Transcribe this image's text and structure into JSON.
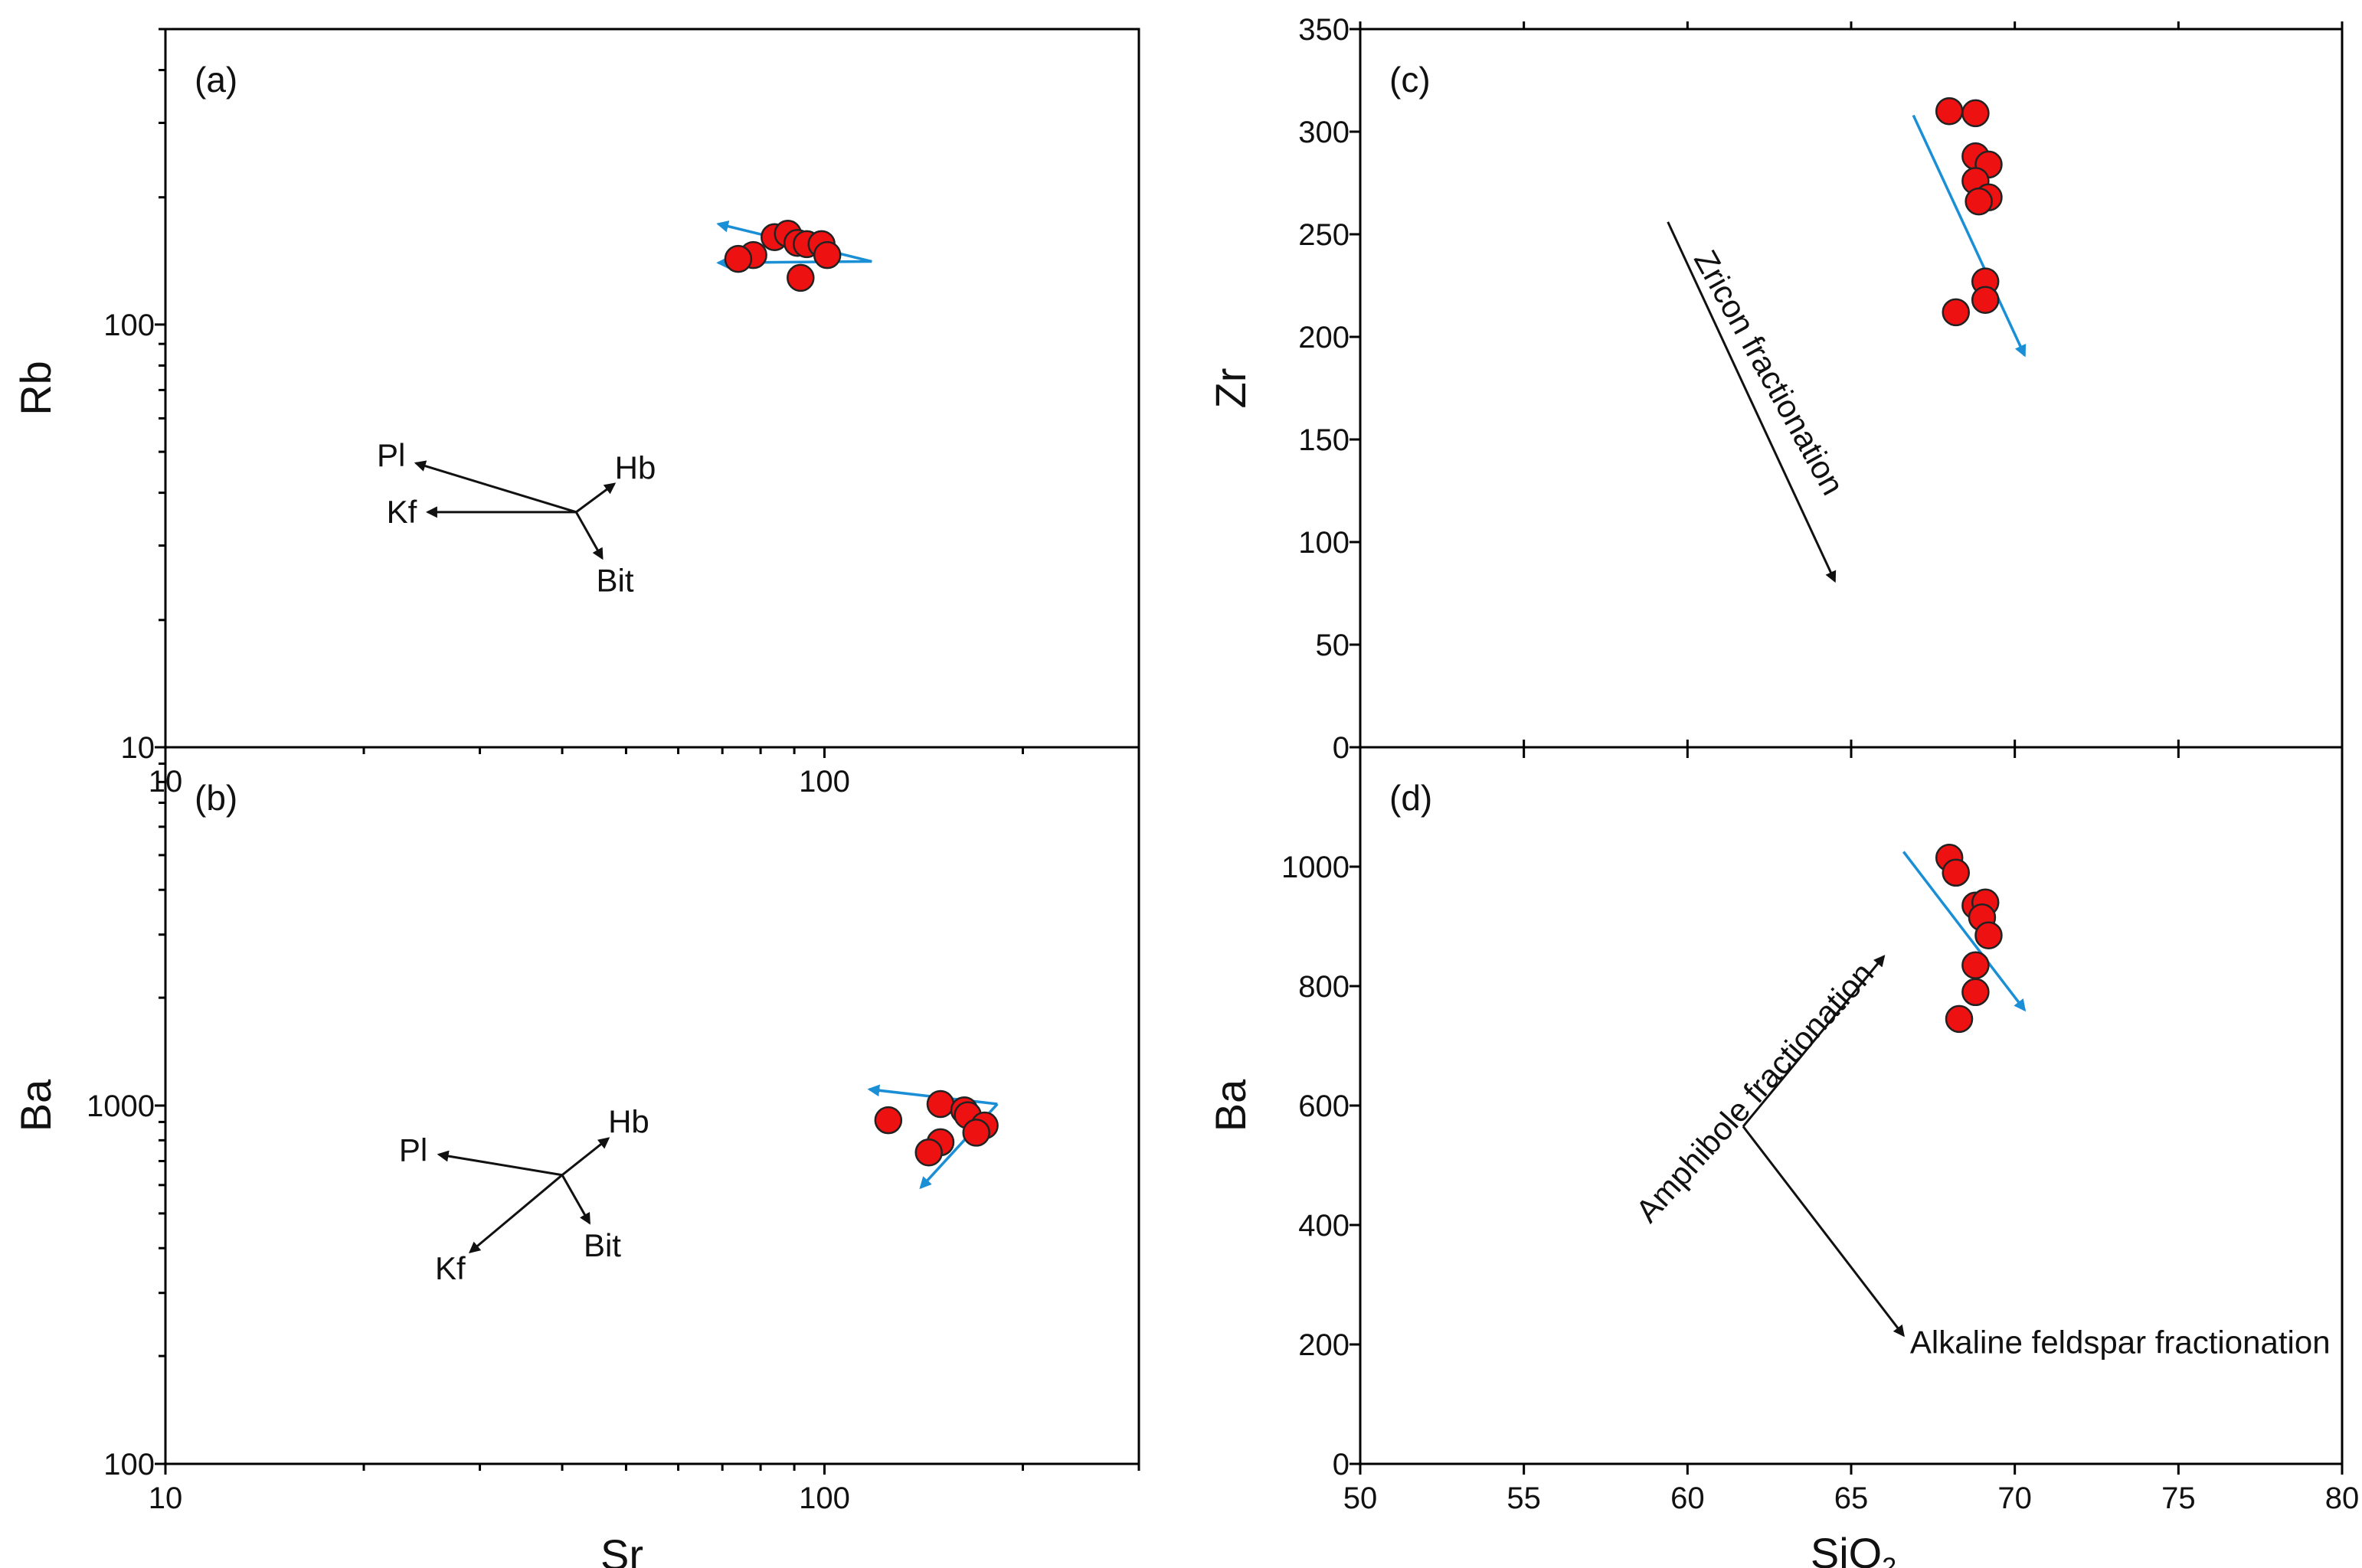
{
  "figure": {
    "shared_xlabels": {
      "left": "Sr",
      "right_main": "SiO",
      "right_sub": "2"
    }
  },
  "chart_data": [
    {
      "id": "a",
      "type": "scatter",
      "panel_label": "(a)",
      "xscale": "log",
      "yscale": "log",
      "xlim": [
        10,
        300
      ],
      "ylim": [
        10,
        500
      ],
      "xlabel": "Sr",
      "ylabel": "Rb",
      "xtick_labels": [
        {
          "v": 10,
          "t": "10"
        },
        {
          "v": 100,
          "t": "100"
        }
      ],
      "ytick_labels": [
        {
          "v": 10,
          "t": "10"
        },
        {
          "v": 100,
          "t": "100"
        }
      ],
      "points": [
        [
          84,
          161
        ],
        [
          88,
          164
        ],
        [
          91,
          156
        ],
        [
          94,
          155
        ],
        [
          99,
          155
        ],
        [
          101,
          146
        ],
        [
          78,
          146
        ],
        [
          74,
          143
        ],
        [
          92,
          129
        ]
      ],
      "vectors_origin": [
        42,
        36
      ],
      "vectors": [
        {
          "label": "Pl",
          "to": [
            24,
            47
          ]
        },
        {
          "label": "Hb",
          "to": [
            48,
            42
          ]
        },
        {
          "label": "Kf",
          "to": [
            25,
            36
          ]
        },
        {
          "label": "Bit",
          "to": [
            46,
            28
          ]
        }
      ],
      "trend_arrows": [
        {
          "from": [
            118,
            141
          ],
          "to": [
            69,
            173
          ]
        },
        {
          "from": [
            118,
            141
          ],
          "to": [
            69,
            140
          ]
        }
      ]
    },
    {
      "id": "b",
      "type": "scatter",
      "panel_label": "(b)",
      "xscale": "log",
      "yscale": "log",
      "xlim": [
        10,
        300
      ],
      "ylim": [
        100,
        10000
      ],
      "xlabel": "Sr",
      "ylabel": "Ba",
      "xtick_labels": [
        {
          "v": 10,
          "t": "10"
        },
        {
          "v": 100,
          "t": "100"
        }
      ],
      "ytick_labels": [
        {
          "v": 100,
          "t": "100"
        },
        {
          "v": 1000,
          "t": "1000"
        }
      ],
      "points": [
        [
          150,
          1010
        ],
        [
          163,
          970
        ],
        [
          165,
          940
        ],
        [
          175,
          880
        ],
        [
          170,
          840
        ],
        [
          150,
          790
        ],
        [
          144,
          740
        ],
        [
          125,
          910
        ]
      ],
      "vectors_origin": [
        40,
        640
      ],
      "vectors": [
        {
          "label": "Pl",
          "to": [
            26,
            730
          ]
        },
        {
          "label": "Hb",
          "to": [
            47,
            810
          ]
        },
        {
          "label": "Kf",
          "to": [
            29,
            390
          ]
        },
        {
          "label": "Bit",
          "to": [
            44,
            470
          ]
        }
      ],
      "trend_arrows": [
        {
          "from": [
            183,
            1010
          ],
          "to": [
            117,
            1110
          ]
        },
        {
          "from": [
            183,
            1010
          ],
          "to": [
            140,
            590
          ]
        }
      ]
    },
    {
      "id": "c",
      "type": "scatter",
      "panel_label": "(c)",
      "xscale": "linear",
      "yscale": "linear",
      "xlim": [
        50,
        80
      ],
      "ylim": [
        0,
        350
      ],
      "xlabel": "SiO2",
      "ylabel": "Zr",
      "xtick_labels": [],
      "ytick_labels": [
        {
          "v": 0,
          "t": "0"
        },
        {
          "v": 50,
          "t": "50"
        },
        {
          "v": 100,
          "t": "100"
        },
        {
          "v": 150,
          "t": "150"
        },
        {
          "v": 200,
          "t": "200"
        },
        {
          "v": 250,
          "t": "250"
        },
        {
          "v": 300,
          "t": "300"
        },
        {
          "v": 350,
          "t": "350"
        }
      ],
      "points": [
        [
          68.0,
          310
        ],
        [
          68.8,
          309
        ],
        [
          68.8,
          288
        ],
        [
          69.2,
          284
        ],
        [
          68.8,
          276
        ],
        [
          69.2,
          268
        ],
        [
          68.9,
          266
        ],
        [
          69.1,
          227
        ],
        [
          69.1,
          218
        ],
        [
          68.2,
          212
        ]
      ],
      "trend_arrows": [
        {
          "from": [
            66.9,
            308
          ],
          "to": [
            70.3,
            191
          ]
        }
      ],
      "annotations": [
        {
          "text": "Zricon fractionation",
          "anchor": [
            62.2,
            180
          ],
          "angle": 61,
          "arrow": {
            "from": [
              59.4,
              256
            ],
            "to": [
              64.5,
              81
            ]
          }
        }
      ]
    },
    {
      "id": "d",
      "type": "scatter",
      "panel_label": "(d)",
      "xscale": "linear",
      "yscale": "linear",
      "xlim": [
        50,
        80
      ],
      "ylim": [
        0,
        1200
      ],
      "xlabel": "SiO2",
      "ylabel": "Ba",
      "xtick_labels": [
        {
          "v": 50,
          "t": "50"
        },
        {
          "v": 55,
          "t": "55"
        },
        {
          "v": 60,
          "t": "60"
        },
        {
          "v": 65,
          "t": "65"
        },
        {
          "v": 70,
          "t": "70"
        },
        {
          "v": 75,
          "t": "75"
        },
        {
          "v": 80,
          "t": "80"
        }
      ],
      "ytick_labels": [
        {
          "v": 0,
          "t": "0"
        },
        {
          "v": 200,
          "t": "200"
        },
        {
          "v": 400,
          "t": "400"
        },
        {
          "v": 600,
          "t": "600"
        },
        {
          "v": 800,
          "t": "800"
        },
        {
          "v": 1000,
          "t": "1000"
        }
      ],
      "points": [
        [
          68.0,
          1015
        ],
        [
          68.2,
          990
        ],
        [
          68.8,
          935
        ],
        [
          69.1,
          940
        ],
        [
          69.0,
          915
        ],
        [
          69.2,
          885
        ],
        [
          68.8,
          835
        ],
        [
          68.8,
          790
        ],
        [
          68.3,
          745
        ]
      ],
      "trend_arrows": [
        {
          "from": [
            66.6,
            1025
          ],
          "to": [
            70.3,
            760
          ]
        }
      ],
      "annotations": [
        {
          "text": "Amphibole fractionation",
          "anchor": [
            62.3,
            610
          ],
          "angle": -48,
          "arrow": {
            "from": [
              61.7,
              565
            ],
            "to": [
              66.0,
              850
            ]
          }
        },
        {
          "text": "Alkaline feldspar fractionation",
          "anchor": [
            66.8,
            185
          ],
          "angle": 0,
          "arrow": {
            "from": [
              61.7,
              565
            ],
            "to": [
              66.6,
              215
            ]
          }
        }
      ]
    }
  ]
}
